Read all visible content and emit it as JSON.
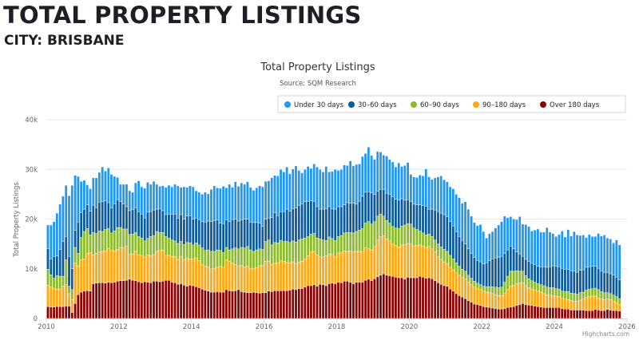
{
  "header": {
    "title": "TOTAL PROPERTY LISTINGS",
    "subtitle": "CITY: BRISBANE"
  },
  "chart_data": {
    "type": "bar",
    "stacked": true,
    "title": "Total Property Listings",
    "subtitle": "Source: SQM Research",
    "ylabel": "Total Property Listings",
    "xlabel": "",
    "ylim": [
      0,
      40000
    ],
    "yticks": [
      "0",
      "10k",
      "20k",
      "30k",
      "40k"
    ],
    "xticks": [
      "2010",
      "2012",
      "2014",
      "2016",
      "2018",
      "2020",
      "2022",
      "2024",
      "2026"
    ],
    "x_start": "2010-01",
    "x_end_tick": "2026-01",
    "frequency": "monthly",
    "units": "thousands of listings",
    "grid": true,
    "legend_position": "top-right",
    "credit": "Highcharts.com",
    "series": [
      {
        "name": "Under 30 days",
        "color": "#2196f3",
        "values": [
          4.8,
          6.8,
          7.0,
          8.6,
          9.1,
          9.1,
          10.3,
          12.2,
          16.8,
          11.1,
          9.2,
          6.3,
          5.8,
          4.0,
          4.5,
          5.5,
          6.0,
          6.0,
          7.0,
          6.0,
          7.0,
          6.8,
          5.5,
          4.5,
          3.5,
          4.0,
          4.5,
          4.0,
          3.5,
          5.0,
          6.2,
          5.5,
          6.0,
          6.0,
          5.5,
          5.8,
          5.0,
          4.5,
          5.0,
          5.5,
          5.8,
          5.5,
          6.0,
          6.5,
          5.5,
          6.5,
          5.8,
          6.0,
          6.5,
          5.5,
          5.5,
          5.5,
          6.0,
          5.5,
          6.5,
          7.0,
          6.5,
          7.0,
          7.5,
          6.5,
          7.5,
          6.5,
          7.5,
          7.0,
          7.5,
          7.0,
          7.5,
          7.0,
          6.5,
          7.0,
          7.5,
          8.0,
          7.6,
          7.5,
          8.0,
          7.5,
          8.0,
          8.5,
          8.0,
          8.5,
          7.5,
          8.0,
          8.5,
          7.0,
          6.3,
          6.5,
          7.0,
          6.5,
          7.5,
          8.0,
          8.0,
          7.5,
          8.5,
          7.0,
          7.5,
          8.0,
          7.3,
          7.5,
          8.0,
          7.5,
          8.5,
          7.5,
          8.0,
          7.5,
          8.0,
          7.8,
          9.0,
          7.5,
          7.0,
          8.0,
          7.5,
          7.0,
          7.5,
          7.0,
          7.0,
          6.5,
          7.5,
          6.5,
          7.0,
          7.5,
          5.5,
          5.5,
          5.5,
          6.0,
          6.0,
          7.5,
          6.5,
          6.0,
          6.5,
          7.0,
          7.5,
          7.0,
          7.0,
          7.0,
          7.5,
          7.5,
          7.8,
          7.5,
          8.5,
          8.0,
          7.5,
          7.0,
          7.0,
          7.5,
          6.5,
          5.0,
          5.5,
          5.5,
          6.0,
          6.5,
          7.0,
          7.5,
          6.5,
          6.0,
          6.0,
          6.5,
          7.5,
          6.5,
          7.0,
          7.0,
          6.5,
          7.0,
          7.5,
          7.0,
          7.0,
          8.0,
          7.0,
          6.5,
          6.0,
          6.5,
          7.5,
          6.5,
          8.0,
          7.0,
          8.0,
          7.5,
          7.0,
          7.0,
          6.0,
          6.5,
          6.0,
          6.0,
          7.0,
          7.0,
          7.5,
          7.0,
          7.0,
          6.5,
          7.5,
          7.0
        ]
      },
      {
        "name": "30-60 days",
        "color": "#0b5a9c",
        "values": [
          4.1,
          3.2,
          4.4,
          4.0,
          5.4,
          7.0,
          4.7,
          6.0,
          4.2,
          3.4,
          6.3,
          5.0,
          4.5,
          4.8,
          4.8,
          5.5,
          5.2,
          5.8,
          6.0,
          5.8,
          5.2,
          5.0,
          5.5,
          5.6,
          5.2,
          5.0,
          4.5,
          4.8,
          4.9,
          5.0,
          5.0,
          4.8,
          4.6,
          5.3,
          5.0,
          5.1,
          4.5,
          4.8,
          4.4,
          4.4,
          4.8,
          5.2,
          5.4,
          5.1,
          5.4,
          5.1,
          5.3,
          5.5,
          5.2,
          5.0,
          5.1,
          5.3,
          5.7,
          5.8,
          6.0,
          6.2,
          6.0,
          5.5,
          5.8,
          5.5,
          5.7,
          5.9,
          5.8,
          5.6,
          5.5,
          5.8,
          5.5,
          5.6,
          5.8,
          5.5,
          5.2,
          4.6,
          4.5,
          4.4,
          5.5,
          6.0,
          5.5,
          5.8,
          6.0,
          6.5,
          6.3,
          6.5,
          6.8,
          7.0,
          7.0,
          7.3,
          7.1,
          6.7,
          6.5,
          6.3,
          6.0,
          6.2,
          6.4,
          6.1,
          6.0,
          6.3,
          6.0,
          5.8,
          5.7,
          6.0,
          5.9,
          6.0,
          5.5,
          5.8,
          6.5,
          6.2,
          6.0,
          6.3,
          5.5,
          5.0,
          5.0,
          5.3,
          5.5,
          5.8,
          6.0,
          5.8,
          5.7,
          5.5,
          5.0,
          4.8,
          4.5,
          4.8,
          5.0,
          5.3,
          5.5,
          5.8,
          5.0,
          5.5,
          6.0,
          6.5,
          6.8,
          7.0,
          7.0,
          6.8,
          6.6,
          6.3,
          6.0,
          5.8,
          5.5,
          5.3,
          5.0,
          4.8,
          4.6,
          4.6,
          4.5,
          4.8,
          5.2,
          5.6,
          5.9,
          6.1,
          6.2,
          5.8,
          5.3,
          5.0,
          4.5,
          3.8,
          3.5,
          3.0,
          3.3,
          3.5,
          3.5,
          3.5,
          3.5,
          3.6,
          3.8,
          4.0,
          4.2,
          4.4,
          4.5,
          4.5,
          4.6,
          4.5,
          4.5,
          4.5,
          4.5,
          4.4,
          4.5,
          4.5,
          4.6,
          4.5,
          4.5,
          4.4,
          4.3,
          4.2,
          4.1,
          4.0,
          4.0,
          4.0,
          3.9,
          3.8
        ]
      },
      {
        "name": "60-90 days",
        "color": "#8cbb2a",
        "values": [
          3.2,
          2.5,
          2.0,
          2.7,
          2.6,
          2.0,
          5.0,
          1.5,
          2.0,
          3.1,
          2.5,
          4.5,
          5.5,
          5.0,
          3.5,
          4.5,
          4.0,
          4.2,
          4.0,
          4.3,
          4.0,
          3.5,
          4.0,
          4.4,
          4.0,
          3.8,
          3.5,
          4.0,
          4.0,
          3.8,
          3.7,
          3.5,
          3.2,
          3.3,
          3.8,
          3.9,
          4.0,
          3.6,
          3.5,
          3.8,
          3.5,
          3.3,
          3.1,
          3.2,
          3.0,
          3.0,
          3.2,
          3.2,
          2.8,
          3.0,
          3.2,
          3.3,
          3.2,
          3.4,
          3.5,
          3.4,
          3.5,
          3.2,
          3.0,
          2.5,
          2.3,
          2.8,
          3.3,
          3.4,
          3.6,
          3.8,
          4.0,
          3.7,
          3.5,
          3.6,
          3.4,
          3.2,
          4.0,
          4.3,
          3.9,
          4.2,
          4.0,
          4.1,
          4.0,
          4.2,
          4.1,
          4.2,
          4.3,
          4.4,
          4.5,
          4.2,
          3.9,
          3.6,
          3.6,
          3.4,
          3.5,
          3.3,
          3.1,
          3.4,
          3.2,
          3.3,
          3.3,
          3.5,
          3.6,
          3.8,
          3.7,
          3.8,
          4.0,
          4.2,
          4.7,
          5.0,
          5.5,
          5.2,
          5.0,
          4.8,
          4.5,
          4.0,
          3.7,
          3.6,
          3.5,
          3.5,
          3.7,
          3.8,
          3.9,
          4.0,
          4.0,
          3.6,
          3.2,
          2.8,
          2.6,
          2.5,
          2.5,
          2.5,
          2.4,
          2.5,
          2.5,
          2.5,
          2.5,
          2.4,
          2.2,
          2.0,
          1.8,
          1.6,
          1.5,
          1.4,
          1.3,
          1.2,
          1.1,
          1.0,
          1.0,
          1.1,
          1.2,
          1.4,
          1.5,
          1.6,
          1.7,
          2.2,
          2.7,
          3.0,
          2.8,
          2.6,
          2.4,
          2.3,
          2.0,
          1.8,
          1.7,
          1.6,
          1.5,
          1.5,
          1.6,
          1.5,
          1.5,
          1.6,
          1.5,
          1.5,
          1.4,
          1.5,
          1.6,
          1.5,
          1.5,
          1.4,
          1.5,
          1.4,
          1.5,
          1.5,
          1.5,
          1.6,
          1.7,
          1.5,
          1.4,
          1.3,
          1.2,
          1.2,
          1.2,
          1.2
        ]
      },
      {
        "name": "90-180 days",
        "color": "#ffa812",
        "values": [
          4.3,
          4.0,
          3.8,
          3.5,
          3.5,
          4.1,
          4.3,
          2.5,
          2.6,
          8.2,
          5.8,
          6.5,
          6.5,
          7.5,
          7.8,
          5.8,
          6.0,
          6.2,
          6.3,
          6.5,
          6.8,
          6.5,
          6.3,
          6.4,
          6.7,
          6.6,
          6.8,
          5.0,
          5.3,
          5.9,
          5.4,
          5.5,
          5.0,
          5.5,
          5.5,
          5.3,
          6.0,
          6.3,
          6.3,
          5.0,
          5.0,
          5.2,
          5.3,
          5.0,
          5.5,
          5.2,
          5.6,
          5.3,
          5.4,
          5.8,
          5.4,
          5.0,
          4.8,
          4.9,
          4.7,
          4.8,
          4.9,
          5.2,
          5.0,
          6.0,
          5.9,
          5.7,
          5.3,
          4.8,
          5.3,
          5.1,
          5.3,
          4.9,
          4.7,
          5.0,
          5.5,
          5.5,
          6.3,
          6.0,
          5.5,
          5.5,
          5.6,
          6.0,
          5.9,
          5.7,
          5.5,
          5.5,
          5.3,
          5.4,
          5.5,
          5.7,
          6.0,
          6.8,
          6.7,
          6.3,
          5.6,
          5.7,
          6.0,
          6.0,
          5.8,
          5.4,
          5.9,
          6.0,
          6.1,
          6.0,
          6.3,
          6.4,
          6.2,
          6.3,
          6.1,
          6.5,
          6.1,
          6.2,
          6.5,
          7.4,
          7.8,
          7.6,
          7.3,
          7.0,
          6.5,
          6.4,
          6.2,
          6.6,
          7.0,
          6.8,
          6.8,
          6.4,
          6.5,
          6.3,
          6.3,
          6.2,
          6.3,
          6.0,
          5.8,
          5.3,
          5.0,
          4.8,
          4.5,
          4.4,
          4.3,
          4.2,
          4.1,
          4.0,
          4.0,
          3.7,
          3.5,
          3.4,
          3.2,
          3.2,
          3.1,
          3.0,
          3.0,
          2.9,
          2.8,
          2.7,
          2.7,
          3.1,
          3.6,
          4.2,
          4.3,
          4.4,
          4.3,
          4.2,
          3.8,
          3.5,
          3.3,
          3.2,
          3.1,
          3.0,
          2.8,
          2.6,
          2.5,
          2.4,
          2.3,
          2.2,
          2.1,
          2.0,
          1.9,
          1.9,
          1.8,
          1.8,
          2.0,
          2.2,
          2.6,
          2.8,
          2.9,
          2.7,
          2.4,
          2.3,
          2.2,
          2.1,
          2.1,
          1.9,
          1.6,
          1.3
        ]
      },
      {
        "name": "Over 180 days",
        "color": "#8b0000",
        "values": [
          2.4,
          2.3,
          2.3,
          2.4,
          2.4,
          2.4,
          2.5,
          2.5,
          1.2,
          3.0,
          4.8,
          5.3,
          5.5,
          5.6,
          5.5,
          7.0,
          7.1,
          7.2,
          7.2,
          7.1,
          7.3,
          7.2,
          7.3,
          7.5,
          7.6,
          7.6,
          7.7,
          7.9,
          7.7,
          7.6,
          7.4,
          7.2,
          7.4,
          7.3,
          7.2,
          7.5,
          7.5,
          7.4,
          7.5,
          7.7,
          7.7,
          7.3,
          7.2,
          6.9,
          7.0,
          6.7,
          6.5,
          6.7,
          6.6,
          6.4,
          6.2,
          5.9,
          5.7,
          5.5,
          5.3,
          5.3,
          5.4,
          5.3,
          5.3,
          5.8,
          5.6,
          5.5,
          5.6,
          5.8,
          5.4,
          5.3,
          5.2,
          5.2,
          5.3,
          5.2,
          5.1,
          5.2,
          5.2,
          5.5,
          5.4,
          5.6,
          5.6,
          5.6,
          5.6,
          5.6,
          5.7,
          5.9,
          5.8,
          6.0,
          6.0,
          6.3,
          6.6,
          6.6,
          6.8,
          6.5,
          6.9,
          6.8,
          6.6,
          7.0,
          7.1,
          7.0,
          7.3,
          7.2,
          7.5,
          7.5,
          7.3,
          7.0,
          7.3,
          7.3,
          7.3,
          7.7,
          7.9,
          7.6,
          8.0,
          8.4,
          8.7,
          9.0,
          8.7,
          8.6,
          8.5,
          8.3,
          8.2,
          8.2,
          7.9,
          8.3,
          8.2,
          8.2,
          8.2,
          8.5,
          8.3,
          8.1,
          8.2,
          8.0,
          7.6,
          7.2,
          6.9,
          6.6,
          6.5,
          5.9,
          5.5,
          5.0,
          4.6,
          4.3,
          4.0,
          3.6,
          3.3,
          2.9,
          2.8,
          2.6,
          2.4,
          2.3,
          2.2,
          2.1,
          2.0,
          1.9,
          1.9,
          2.0,
          2.2,
          2.3,
          2.4,
          2.6,
          2.8,
          3.0,
          2.8,
          2.7,
          2.6,
          2.5,
          2.4,
          2.3,
          2.2,
          2.2,
          2.2,
          2.2,
          2.2,
          2.2,
          2.0,
          1.9,
          1.9,
          1.7,
          1.7,
          1.7,
          1.7,
          1.7,
          1.6,
          1.6,
          1.6,
          1.8,
          1.7,
          1.6,
          1.6,
          1.8,
          1.7,
          1.6,
          1.6,
          1.5
        ]
      }
    ]
  }
}
